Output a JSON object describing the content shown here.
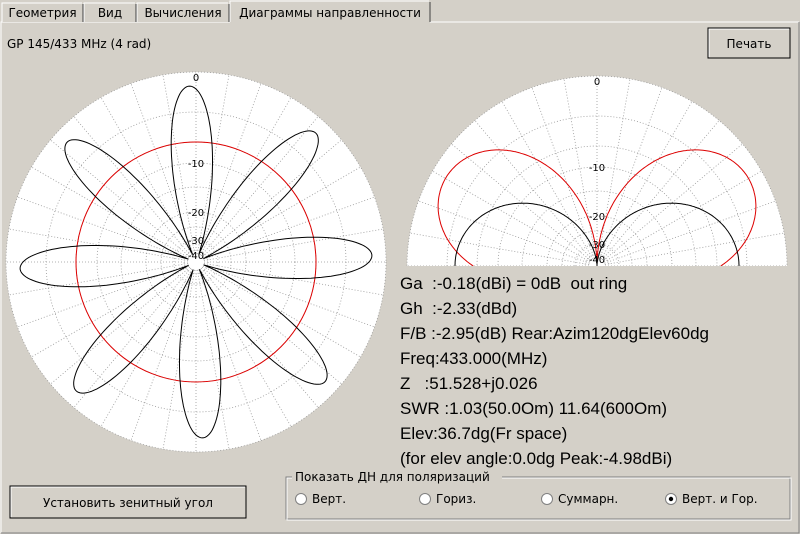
{
  "tabs": [
    "Геометрия",
    "Вид",
    "Вычисления",
    "Диаграммы направленности"
  ],
  "active_tab": 3,
  "header": {
    "title": "GP 145/433 MHz (4 rad)",
    "print_button": "Печать"
  },
  "plots": {
    "left_ring_labels": [
      "0",
      "-10",
      "-20",
      "-30",
      "-40"
    ],
    "right_ring_labels": [
      "0",
      "-10",
      "-20",
      "-30",
      "-40"
    ]
  },
  "info_lines": [
    "Ga  :-0.18(dBi) = 0dB  out ring",
    "Gh  :-2.33(dBd)",
    "F/B :-2.95(dB) Rear:Azim120dgElev60dg",
    "Freq:433.000(MHz)",
    "Z   :51.528+j0.026",
    "SWR :1.03(50.0Om) 11.64(600Om)",
    "Elev:36.7dg(Fr space)",
    "(for elev angle:0.0dg Peak:-4.98dBi)"
  ],
  "zenith_button": "Установить зенитный угол",
  "polarization": {
    "title": "Показать ДН для поляризаций",
    "options": [
      "Верт.",
      "Гориз.",
      "Суммарн.",
      "Верт. и Гор."
    ],
    "selected": 3
  }
}
